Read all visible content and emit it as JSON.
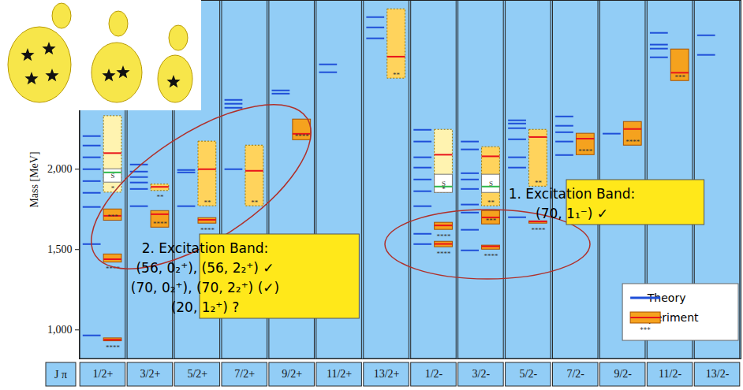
{
  "chart_data": {
    "type": "range",
    "xlabel": "J π",
    "ylabel": "Mass [MeV]",
    "categories": [
      "1/2+",
      "3/2+",
      "5/2+",
      "7/2+",
      "9/2+",
      "11/2+",
      "13/2+",
      "1/2-",
      "3/2-",
      "5/2-",
      "7/2-",
      "9/2-",
      "11/2-",
      "13/2-"
    ],
    "ylim": [
      820,
      3050
    ],
    "yticks": [
      1000,
      1500,
      2000
    ],
    "grid": false,
    "legend": "lower right",
    "series": [
      {
        "name": "Theory",
        "type": "line",
        "color": "#1f4fd8",
        "values": [
          [
            966,
            1534,
            1765,
            1853,
            1926,
            2000,
            2074,
            2147,
            2206
          ],
          [
            1770,
            1877,
            1917,
            1951,
            1985,
            2029
          ],
          [
            1770,
            1980,
            1995
          ],
          [
            2000,
            2382,
            2407,
            2431
          ],
          [
            2470,
            2490
          ],
          [
            2603,
            2652
          ],
          [
            2814,
            2882,
            2946
          ],
          [
            1534,
            1598,
            1770,
            1863,
            1936,
            2010,
            2074,
            2172,
            2245
          ],
          [
            1495,
            1623,
            1730,
            1780,
            1877,
            1936,
            1975,
            2123,
            2172
          ],
          [
            1701,
            2010,
            2074,
            2186,
            2255,
            2284,
            2304
          ],
          [
            2088,
            2172,
            2230,
            2270,
            2328
          ],
          [
            2221
          ],
          [
            2696,
            2750,
            2775,
            2848
          ],
          [
            2711,
            2833
          ]
        ]
      },
      {
        "name": "Experiment",
        "type": "box",
        "color": "#f5a21e",
        "legend_label": "***",
        "values": [
          [
            {
              "mass": 939,
              "lo": 930,
              "hi": 948,
              "rating": "****"
            },
            {
              "mass": 1440,
              "lo": 1420,
              "hi": 1470,
              "rating": "****"
            },
            {
              "mass": 1710,
              "lo": 1680,
              "hi": 1750,
              "rating": "***"
            },
            {
              "mass": 2100,
              "lo": 1855,
              "hi": 2330,
              "rating": "*"
            },
            {
              "mass": 1980,
              "lo": 1917,
              "hi": 2000,
              "rating": "S"
            }
          ],
          [
            {
              "mass": 1720,
              "lo": 1637,
              "hi": 1740,
              "rating": "****"
            },
            {
              "mass": 1890,
              "lo": 1865,
              "hi": 1905,
              "rating": "**"
            }
          ],
          [
            {
              "mass": 1685,
              "lo": 1662,
              "hi": 1696,
              "rating": "****"
            },
            {
              "mass": 2000,
              "lo": 1770,
              "hi": 2172,
              "rating": "**"
            }
          ],
          [
            {
              "mass": 1990,
              "lo": 1770,
              "hi": 2147,
              "rating": "**"
            }
          ],
          [
            {
              "mass": 2220,
              "lo": 2181,
              "hi": 2309,
              "rating": "****"
            }
          ],
          [],
          [
            {
              "mass": 2700,
              "lo": 2564,
              "hi": 2995,
              "rating": "**"
            }
          ],
          [
            {
              "mass": 1535,
              "lo": 1515,
              "hi": 1549,
              "rating": "****"
            },
            {
              "mass": 1650,
              "lo": 1623,
              "hi": 1667,
              "rating": "****"
            },
            {
              "mass": 2090,
              "lo": 1853,
              "hi": 2245,
              "rating": "*"
            },
            {
              "mass": 1892,
              "lo": 1853,
              "hi": 1966,
              "rating": "S"
            }
          ],
          [
            {
              "mass": 1520,
              "lo": 1500,
              "hi": 1525,
              "rating": "****"
            },
            {
              "mass": 1700,
              "lo": 1657,
              "hi": 1740,
              "rating": "***"
            },
            {
              "mass": 2080,
              "lo": 1770,
              "hi": 2137,
              "rating": "**"
            },
            {
              "mass": 1892,
              "lo": 1853,
              "hi": 1966,
              "rating": "S"
            }
          ],
          [
            {
              "mass": 1675,
              "lo": 1662,
              "hi": 1676,
              "rating": "****"
            },
            {
              "mass": 2200,
              "lo": 1892,
              "hi": 2245,
              "rating": "**"
            }
          ],
          [
            {
              "mass": 2190,
              "lo": 2088,
              "hi": 2221,
              "rating": "****"
            }
          ],
          [
            {
              "mass": 2250,
              "lo": 2147,
              "hi": 2294,
              "rating": "****"
            }
          ],
          [
            {
              "mass": 2600,
              "lo": 2549,
              "hi": 2745,
              "rating": "***"
            }
          ],
          []
        ]
      }
    ],
    "annotations": [
      {
        "text": [
          "1. Excitation Band:",
          "(70, 1₁⁻) ✓"
        ]
      },
      {
        "text": [
          "2. Excitation Band:",
          "(56, 0₂⁺), (56, 2₂⁺) ✓",
          "(70, 0₂⁺), (70, 2₂⁺) (✓)",
          "(20, 1₂⁺) ?"
        ]
      }
    ]
  }
}
